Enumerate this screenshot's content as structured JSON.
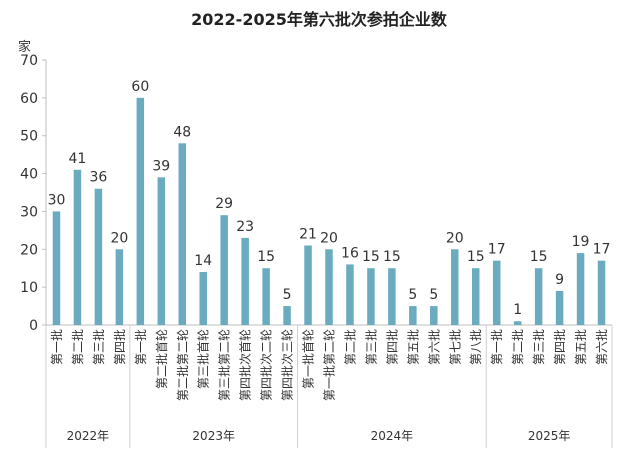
{
  "chart_data": {
    "type": "bar",
    "title": "2022-2025年第六批次参拍企业数",
    "y_unit_label": "家",
    "ylim": [
      0,
      70
    ],
    "yticks": [
      0,
      10,
      20,
      30,
      40,
      50,
      60,
      70
    ],
    "grid": false,
    "legend": "none",
    "bar_color": "#6aabc0",
    "groups": [
      {
        "label": "2022年",
        "categories": [
          "第一批",
          "第二批",
          "第三批",
          "第四批"
        ],
        "values": [
          30,
          41,
          36,
          20
        ]
      },
      {
        "label": "2023年",
        "categories": [
          "第一批",
          "第二批首轮",
          "第二批第二轮",
          "第三批首轮",
          "第三批第二轮",
          "第四批次首轮",
          "第四批次二轮",
          "第四批次三轮"
        ],
        "values": [
          60,
          39,
          48,
          14,
          29,
          23,
          15,
          5
        ]
      },
      {
        "label": "2024年",
        "categories": [
          "第一批首轮",
          "第一批第二轮",
          "第二批",
          "第三批",
          "第四批",
          "第五批",
          "第六批",
          "第七批",
          "第八批"
        ],
        "values": [
          21,
          20,
          16,
          15,
          15,
          5,
          5,
          20,
          15
        ]
      },
      {
        "label": "2025年",
        "categories": [
          "第一批",
          "第二批",
          "第三批",
          "第四批",
          "第五批",
          "第六批"
        ],
        "values": [
          17,
          1,
          15,
          9,
          19,
          17
        ]
      }
    ]
  }
}
